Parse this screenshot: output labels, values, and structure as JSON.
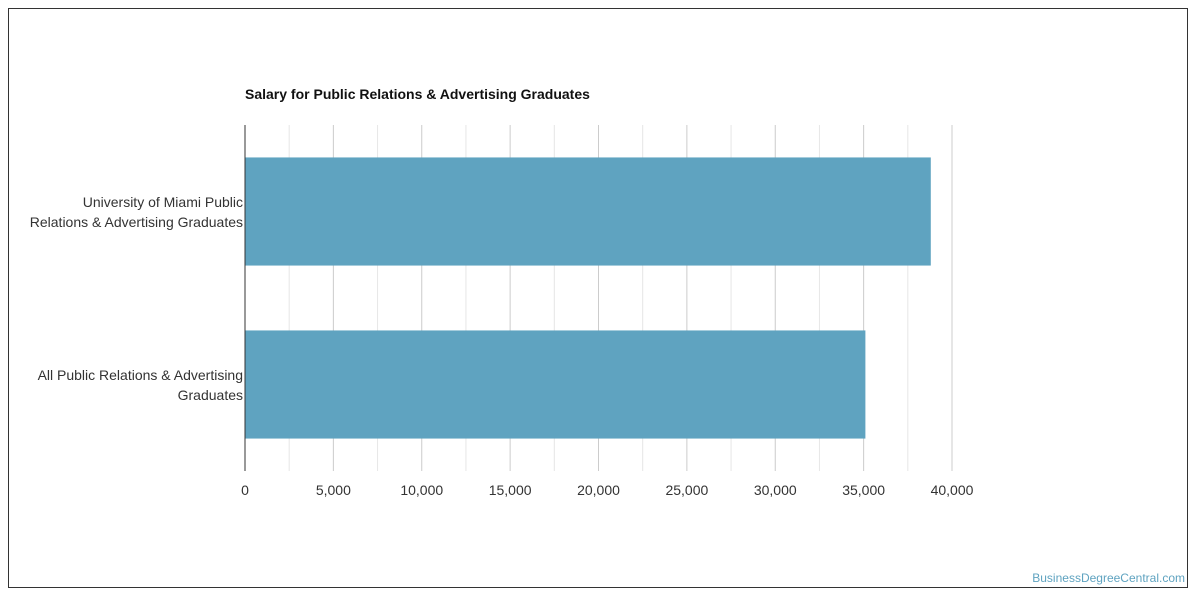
{
  "chart_data": {
    "type": "bar",
    "orientation": "horizontal",
    "title": "Salary for Public Relations & Advertising Graduates",
    "categories": [
      "University of Miami Public Relations & Advertising Graduates",
      "All Public Relations & Advertising Graduates"
    ],
    "category_lines": [
      [
        "University of Miami Public",
        "Relations & Advertising Graduates"
      ],
      [
        "All Public Relations & Advertising",
        "Graduates"
      ]
    ],
    "values": [
      38800,
      35100
    ],
    "xlim": [
      0,
      40000
    ],
    "xticks": [
      0,
      5000,
      10000,
      15000,
      20000,
      25000,
      30000,
      35000,
      40000
    ],
    "xtick_labels": [
      "0",
      "5,000",
      "10,000",
      "15,000",
      "20,000",
      "25,000",
      "30,000",
      "35,000",
      "40,000"
    ],
    "grid": true,
    "legend": "none",
    "bar_color": "#5fa3c0"
  },
  "watermark": "BusinessDegreeCentral.com"
}
